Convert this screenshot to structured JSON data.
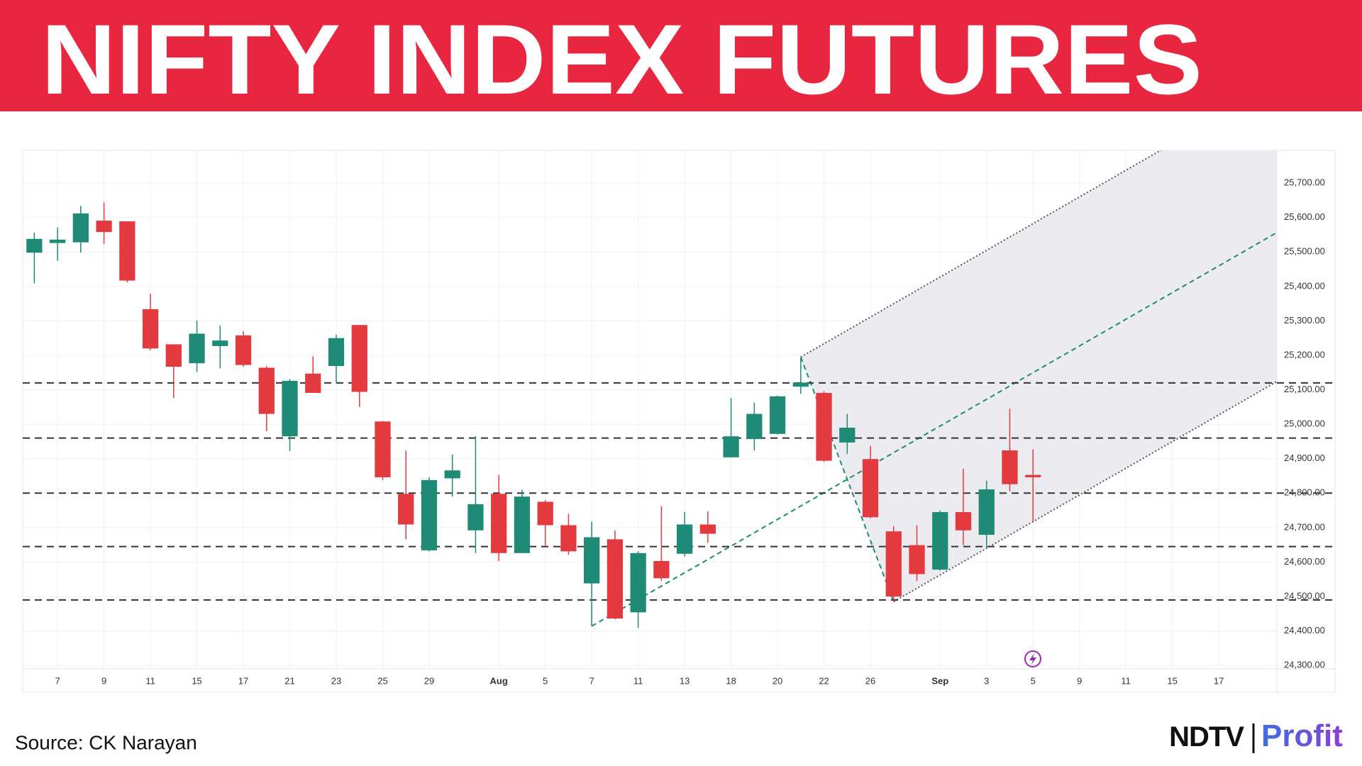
{
  "header": {
    "title": "NIFTY INDEX FUTURES"
  },
  "chart_data": {
    "type": "candlestick",
    "categories": [
      null,
      "7",
      null,
      "9",
      null,
      "11",
      null,
      "15",
      null,
      "17",
      null,
      "21",
      null,
      "23",
      null,
      "25",
      null,
      "29",
      null,
      null,
      "Aug",
      null,
      "5",
      null,
      "7",
      null,
      "11",
      null,
      "13",
      null,
      "18",
      null,
      "20",
      null,
      "22",
      null,
      "26",
      null,
      null,
      "Sep",
      null,
      "3",
      null,
      "5",
      null,
      "9",
      null,
      "11",
      null,
      "15",
      null,
      "17",
      null,
      null
    ],
    "open": [
      25498,
      25526,
      25528,
      25591,
      25589,
      25334,
      25232,
      25177,
      25227,
      25258,
      25164,
      24965,
      25147,
      25169,
      25288,
      25008,
      24798,
      24634,
      24843,
      24692,
      24798,
      24626,
      24775,
      24707,
      24538,
      24666,
      24454,
      24603,
      24624,
      24709,
      24904,
      24957,
      24972,
      25109,
      25091,
      24947,
      24899,
      24689,
      24649,
      24578,
      24745,
      24679,
      24924,
      24853,
      null,
      null,
      null,
      null,
      null,
      null,
      null,
      null,
      null,
      null
    ],
    "high": [
      25556,
      25571,
      25634,
      25644,
      25589,
      25379,
      25232,
      25301,
      25286,
      25270,
      25169,
      25131,
      25197,
      25260,
      25288,
      25010,
      24924,
      24846,
      24912,
      24965,
      24853,
      24810,
      24780,
      24740,
      24717,
      24692,
      24631,
      24762,
      24745,
      24747,
      25076,
      25063,
      25083,
      25195,
      25096,
      25030,
      24937,
      24704,
      24707,
      24750,
      24871,
      24836,
      25045,
      24927,
      null,
      null,
      null,
      null,
      null,
      null,
      null,
      null,
      null,
      null
    ],
    "low": [
      25409,
      25475,
      25498,
      25523,
      25412,
      25215,
      25076,
      25152,
      25162,
      25167,
      24980,
      24922,
      25091,
      25119,
      25051,
      24838,
      24666,
      24631,
      24790,
      24626,
      24603,
      24626,
      24646,
      24621,
      24414,
      24434,
      24409,
      24545,
      24616,
      24656,
      24904,
      24924,
      24970,
      25088,
      24891,
      24914,
      24727,
      24485,
      24545,
      24575,
      24649,
      24641,
      24805,
      24717,
      null,
      null,
      null,
      null,
      null,
      null,
      null,
      null,
      null,
      null
    ],
    "close": [
      25538,
      25536,
      25612,
      25558,
      25417,
      25220,
      25167,
      25263,
      25243,
      25172,
      25030,
      25126,
      25091,
      25250,
      25094,
      24846,
      24709,
      24838,
      24866,
      24768,
      24626,
      24790,
      24707,
      24631,
      24672,
      24436,
      24626,
      24553,
      24709,
      24682,
      24965,
      25030,
      25081,
      25121,
      24894,
      24990,
      24730,
      24500,
      24565,
      24745,
      24692,
      24811,
      24826,
      24846,
      null,
      null,
      null,
      null,
      null,
      null,
      null,
      null,
      null,
      null
    ],
    "up_color": "#1f8a76",
    "down_color": "#e23a3f",
    "ylim": [
      24290,
      25795
    ],
    "yticks": [
      {
        "value": 24300,
        "label": "24,300.00"
      },
      {
        "value": 24400,
        "label": "24,400.00"
      },
      {
        "value": 24500,
        "label": "24,500.00"
      },
      {
        "value": 24600,
        "label": "24,600.00"
      },
      {
        "value": 24700,
        "label": "24,700.00"
      },
      {
        "value": 24800,
        "label": "24,800.00"
      },
      {
        "value": 24900,
        "label": "24,900.00"
      },
      {
        "value": 25000,
        "label": "25,000.00"
      },
      {
        "value": 25100,
        "label": "25,100.00"
      },
      {
        "value": 25200,
        "label": "25,200.00"
      },
      {
        "value": 25300,
        "label": "25,300.00"
      },
      {
        "value": 25400,
        "label": "25,400.00"
      },
      {
        "value": 25500,
        "label": "25,500.00"
      },
      {
        "value": 25600,
        "label": "25,600.00"
      },
      {
        "value": 25700,
        "label": "25,700.00"
      }
    ],
    "grid": true,
    "levels": [
      25120,
      24960,
      24800,
      24645,
      24490
    ],
    "level_color": "#333333",
    "pitchfork": {
      "points": [
        {
          "x": 24,
          "y": 24414
        },
        {
          "x": 33,
          "y": 25195
        },
        {
          "x": 37,
          "y": 24485
        }
      ],
      "color": "#1f8a76",
      "channel_color": "#555555",
      "fill": "#ececf0"
    }
  },
  "footer": {
    "source": "Source: CK Narayan",
    "logo": {
      "brand": "NDTV",
      "product": "Profit"
    }
  }
}
